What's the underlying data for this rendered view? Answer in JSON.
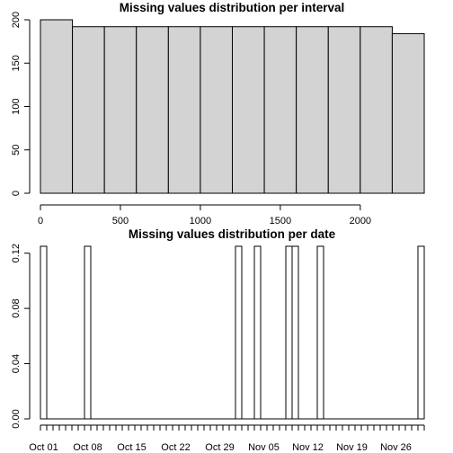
{
  "chart_data": [
    {
      "type": "bar",
      "title": "Missing values distribution per interval",
      "xlabel": "",
      "ylabel": "",
      "bins": [
        {
          "from": 0,
          "to": 200,
          "value": 200
        },
        {
          "from": 200,
          "to": 400,
          "value": 192
        },
        {
          "from": 400,
          "to": 600,
          "value": 192
        },
        {
          "from": 600,
          "to": 800,
          "value": 192
        },
        {
          "from": 800,
          "to": 1000,
          "value": 192
        },
        {
          "from": 1000,
          "to": 1200,
          "value": 192
        },
        {
          "from": 1200,
          "to": 1400,
          "value": 192
        },
        {
          "from": 1400,
          "to": 1600,
          "value": 192
        },
        {
          "from": 1600,
          "to": 1800,
          "value": 192
        },
        {
          "from": 1800,
          "to": 2000,
          "value": 192
        },
        {
          "from": 2000,
          "to": 2200,
          "value": 192
        },
        {
          "from": 2200,
          "to": 2400,
          "value": 184
        }
      ],
      "xlim": [
        0,
        2400
      ],
      "ylim": [
        0,
        200
      ],
      "x_ticks": [
        0,
        500,
        1000,
        1500,
        2000
      ],
      "x_tick_labels": [
        "0",
        "500",
        "1000",
        "1500",
        "2000"
      ],
      "y_ticks": [
        0,
        50,
        100,
        150,
        200
      ],
      "y_tick_labels": [
        "0",
        "50",
        "100",
        "150",
        "200"
      ],
      "bar_fill": "#d3d3d3",
      "grid": false
    },
    {
      "type": "bar",
      "title": "Missing values distribution per date",
      "xlabel": "",
      "ylabel": "",
      "start_date": "2012-10-01",
      "end_date": "2012-11-30",
      "bars": [
        {
          "date": "2012-10-01",
          "value": 0.125
        },
        {
          "date": "2012-10-08",
          "value": 0.125
        },
        {
          "date": "2012-11-01",
          "value": 0.125
        },
        {
          "date": "2012-11-04",
          "value": 0.125
        },
        {
          "date": "2012-11-09",
          "value": 0.125
        },
        {
          "date": "2012-11-10",
          "value": 0.125
        },
        {
          "date": "2012-11-14",
          "value": 0.125
        },
        {
          "date": "2012-11-30",
          "value": 0.125
        }
      ],
      "ylim": [
        0,
        0.125
      ],
      "y_ticks": [
        0,
        0.04,
        0.08,
        0.12
      ],
      "y_tick_labels": [
        "0.00",
        "0.04",
        "0.08",
        "0.12"
      ],
      "x_tick_labels": [
        "Oct 01",
        "Oct 08",
        "Oct 15",
        "Oct 22",
        "Oct 29",
        "Nov 05",
        "Nov 12",
        "Nov 19",
        "Nov 26"
      ],
      "x_tick_dates": [
        "2012-10-01",
        "2012-10-08",
        "2012-10-15",
        "2012-10-22",
        "2012-10-29",
        "2012-11-05",
        "2012-11-12",
        "2012-11-19",
        "2012-11-26"
      ],
      "bar_fill": "#ffffff",
      "grid": false
    }
  ]
}
